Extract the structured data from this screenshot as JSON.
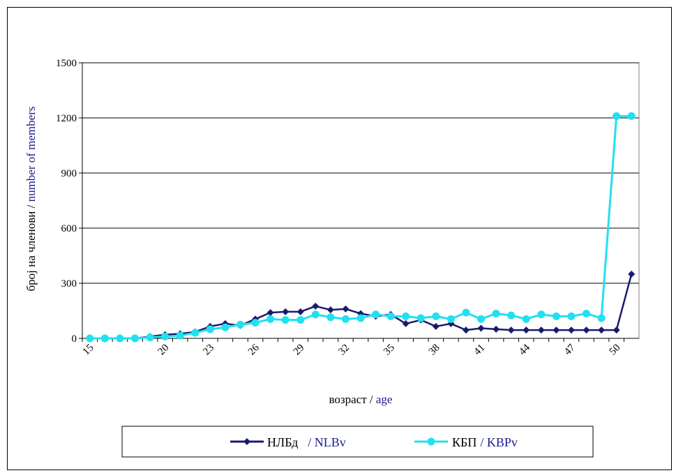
{
  "chart_data": {
    "type": "line",
    "title": "",
    "xlabel_part1": "возраст / ",
    "xlabel_part2": "age",
    "ylabel_part1": "број на членови / ",
    "ylabel_part2": "number of members",
    "x": [
      15,
      16,
      17,
      18,
      19,
      20,
      21,
      22,
      23,
      24,
      25,
      26,
      27,
      28,
      29,
      30,
      31,
      32,
      33,
      34,
      35,
      36,
      37,
      38,
      39,
      40,
      41,
      42,
      43,
      44,
      45,
      46,
      47,
      48,
      49,
      50,
      51
    ],
    "x_ticks": [
      15,
      20,
      23,
      26,
      29,
      32,
      35,
      38,
      41,
      44,
      47,
      50
    ],
    "ylim": [
      0,
      1500
    ],
    "y_ticks": [
      0,
      300,
      600,
      900,
      1200,
      1500
    ],
    "grid": "horizontal",
    "legend_position": "bottom",
    "series": [
      {
        "name_part1": "НЛБд",
        "name_part2": "/ NLBv",
        "color": "#1a1a6e",
        "marker": "diamond",
        "values": [
          0,
          0,
          0,
          0,
          10,
          20,
          25,
          35,
          65,
          80,
          70,
          105,
          140,
          145,
          145,
          175,
          155,
          160,
          135,
          120,
          130,
          80,
          100,
          65,
          80,
          45,
          55,
          50,
          45,
          45,
          45,
          45,
          45,
          45,
          45,
          45,
          350
        ]
      },
      {
        "name_part1": "КБП",
        "name_part2": "/ KBPv",
        "color": "#22e0f0",
        "marker": "circle",
        "values": [
          0,
          0,
          0,
          0,
          5,
          10,
          15,
          30,
          50,
          60,
          75,
          85,
          105,
          100,
          100,
          130,
          115,
          105,
          110,
          130,
          120,
          120,
          110,
          120,
          105,
          140,
          105,
          135,
          125,
          105,
          130,
          120,
          120,
          135,
          110,
          1210,
          1210
        ]
      }
    ]
  }
}
